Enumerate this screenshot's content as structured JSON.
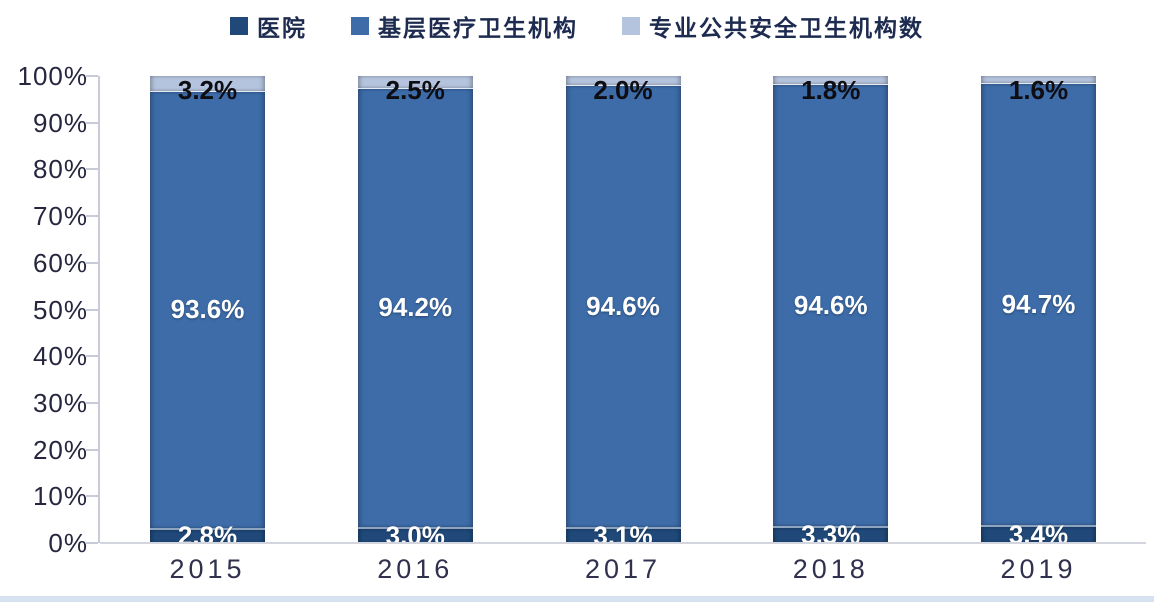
{
  "chart_data": {
    "type": "bar",
    "subtype": "stacked-100-percent",
    "title": "",
    "xlabel": "",
    "ylabel": "",
    "grid": false,
    "legend_position": "top-center",
    "ylim": [
      0,
      100
    ],
    "yticks": [
      "100%",
      "90%",
      "80%",
      "70%",
      "60%",
      "50%",
      "40%",
      "30%",
      "20%",
      "10%",
      "0%"
    ],
    "categories": [
      "2015",
      "2016",
      "2017",
      "2018",
      "2019"
    ],
    "stack_order_bottom_to_top": [
      "医院",
      "基层医疗卫生机构",
      "专业公共安全卫生机构数"
    ],
    "series": [
      {
        "name": "医院",
        "color": "#20497a",
        "label_position": "inside-center-clipped-at-baseline",
        "values": [
          2.8,
          3.0,
          3.1,
          3.3,
          3.4
        ]
      },
      {
        "name": "基层医疗卫生机构",
        "color": "#3d6ca9",
        "label_position": "inside-center",
        "values": [
          93.6,
          94.2,
          94.6,
          94.6,
          94.7
        ]
      },
      {
        "name": "专业公共安全卫生机构数",
        "color": "#b5c4de",
        "label_position": "inside-top",
        "values": [
          3.2,
          2.5,
          2.0,
          1.8,
          1.6
        ]
      }
    ],
    "value_label_format": "{value}%"
  },
  "style_colors": {
    "axis_line": "#c9ccd8",
    "y_label_text": "#26263e",
    "x_label_text": "#30304f",
    "top_value_label_text": "#0d0d12",
    "inside_value_label_text": "#ffffff",
    "bottom_strip": "#d7e2f0",
    "background": "#ffffff"
  }
}
